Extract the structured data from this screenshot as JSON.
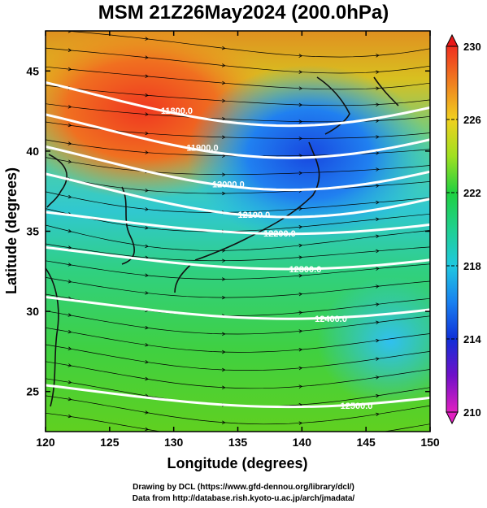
{
  "title": "MSM 21Z26May2024 (200.0hPa)",
  "xlabel": "Longitude (degrees)",
  "ylabel": "Latitude  (degrees)",
  "xticks": [
    "120",
    "125",
    "130",
    "135",
    "140",
    "145",
    "150"
  ],
  "yticks": [
    "25",
    "30",
    "35",
    "40",
    "45"
  ],
  "colorbar": {
    "ticks": [
      "230",
      "226",
      "222",
      "218",
      "214",
      "210"
    ],
    "min": 210,
    "max": 230,
    "colors": [
      "#e020c0",
      "#5010c8",
      "#1040e0",
      "#20a0f0",
      "#20d0c0",
      "#20d050",
      "#60d820",
      "#d0e020",
      "#f0a020",
      "#f04020",
      "#e81818"
    ]
  },
  "contours": [
    {
      "label": "11800.0",
      "lat": 43.5
    },
    {
      "label": "11900.0",
      "lat": 41.5
    },
    {
      "label": "12000.0",
      "lat": 39.5
    },
    {
      "label": "12100.0",
      "lat": 37.8
    },
    {
      "label": "12200.0",
      "lat": 35.8
    },
    {
      "label": "12300.0",
      "lat": 33.6
    },
    {
      "label": "12400.0",
      "lat": 30.5
    },
    {
      "label": "12500.0",
      "lat": 25.0
    }
  ],
  "contour_labels_visible": [
    "11800.0",
    "11900.0",
    "12000.0",
    "12100.0",
    "12200.0",
    "12300.0",
    "12400.0",
    "12500.0"
  ],
  "footer": {
    "line1": "Drawing by DCL (https://www.gfd-dennou.org/library/dcl/)",
    "line2": "Data from http://database.rish.kyoto-u.ac.jp/arch/jmadata/"
  },
  "chart_data": {
    "type": "heatmap",
    "title": "MSM 21Z26May2024 (200.0hPa)",
    "xlabel": "Longitude (degrees)",
    "ylabel": "Latitude  (degrees)",
    "xlim": [
      120,
      150
    ],
    "ylim": [
      22.5,
      47.5
    ],
    "color_range": [
      210,
      230
    ],
    "colorbar_ticks": [
      210,
      214,
      218,
      222,
      226,
      230
    ],
    "contour_levels": [
      11800,
      11900,
      12000,
      12100,
      12200,
      12300,
      12400,
      12500
    ]
  }
}
